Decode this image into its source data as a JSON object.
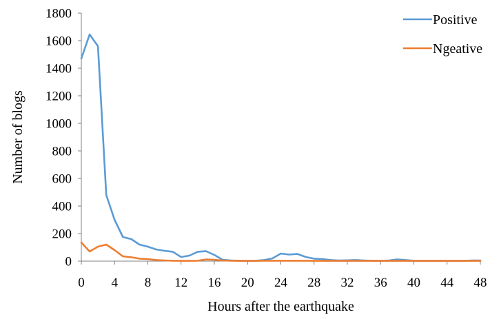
{
  "chart_data": {
    "type": "line",
    "xlabel": "Hours after the earthquake",
    "ylabel": "Number of blogs",
    "xlim": [
      0,
      48
    ],
    "ylim": [
      0,
      1800
    ],
    "xticks": [
      0,
      4,
      8,
      12,
      16,
      20,
      24,
      28,
      32,
      36,
      40,
      44,
      48
    ],
    "yticks": [
      0,
      200,
      400,
      600,
      800,
      1000,
      1200,
      1400,
      1600,
      1800
    ],
    "grid": false,
    "legend": "top-right",
    "x": [
      0,
      1,
      2,
      3,
      4,
      5,
      6,
      7,
      8,
      9,
      10,
      11,
      12,
      13,
      14,
      15,
      16,
      17,
      18,
      19,
      20,
      21,
      22,
      23,
      24,
      25,
      26,
      27,
      28,
      29,
      30,
      31,
      32,
      33,
      34,
      35,
      36,
      37,
      38,
      39,
      40,
      41,
      42,
      43,
      44,
      45,
      46,
      47,
      48
    ],
    "series": [
      {
        "name": "Positive",
        "color": "#5B9BD5",
        "values": [
          1470,
          1645,
          1560,
          480,
          300,
          175,
          160,
          120,
          105,
          85,
          75,
          68,
          30,
          40,
          68,
          72,
          45,
          10,
          5,
          3,
          2,
          3,
          8,
          20,
          55,
          48,
          52,
          30,
          18,
          15,
          8,
          5,
          6,
          8,
          5,
          3,
          2,
          5,
          12,
          8,
          3,
          2,
          2,
          2,
          2,
          2,
          2,
          5,
          5
        ]
      },
      {
        "name": "Ngeative",
        "color": "#ED7D31",
        "values": [
          135,
          70,
          105,
          120,
          80,
          35,
          28,
          18,
          15,
          8,
          5,
          3,
          2,
          2,
          3,
          12,
          10,
          5,
          3,
          2,
          2,
          2,
          3,
          3,
          3,
          3,
          3,
          3,
          2,
          2,
          2,
          2,
          2,
          2,
          2,
          2,
          2,
          2,
          2,
          2,
          2,
          2,
          2,
          2,
          2,
          2,
          2,
          2,
          2
        ]
      }
    ]
  }
}
